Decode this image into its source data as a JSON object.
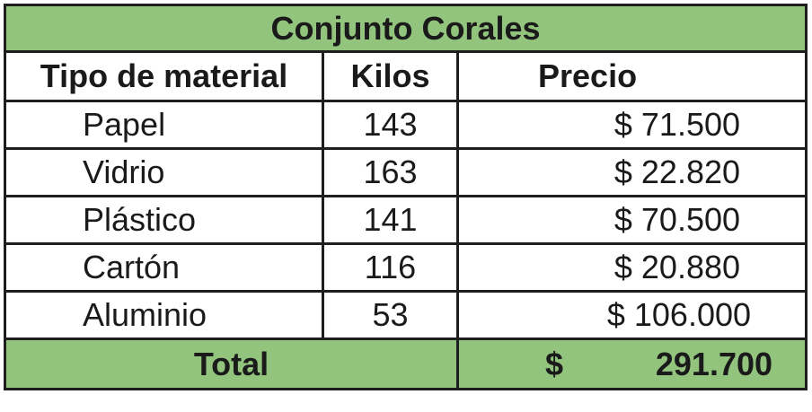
{
  "table": {
    "title": "Conjunto Corales",
    "headers": {
      "material": "Tipo de material",
      "kilos": "Kilos",
      "precio": "Precio"
    },
    "rows": [
      {
        "material": "Papel",
        "kilos": "143",
        "precio": "$ 71.500"
      },
      {
        "material": "Vidrio",
        "kilos": "163",
        "precio": "$ 22.820"
      },
      {
        "material": "Plástico",
        "kilos": "141",
        "precio": "$ 70.500"
      },
      {
        "material": "Cartón",
        "kilos": "116",
        "precio": "$ 20.880"
      },
      {
        "material": "Aluminio",
        "kilos": "53",
        "precio": "$ 106.000"
      }
    ],
    "total": {
      "label": "Total",
      "currency": "$",
      "value": "291.700"
    },
    "colors": {
      "header_fill": "#93c47d",
      "border": "#1e1e1e"
    }
  }
}
